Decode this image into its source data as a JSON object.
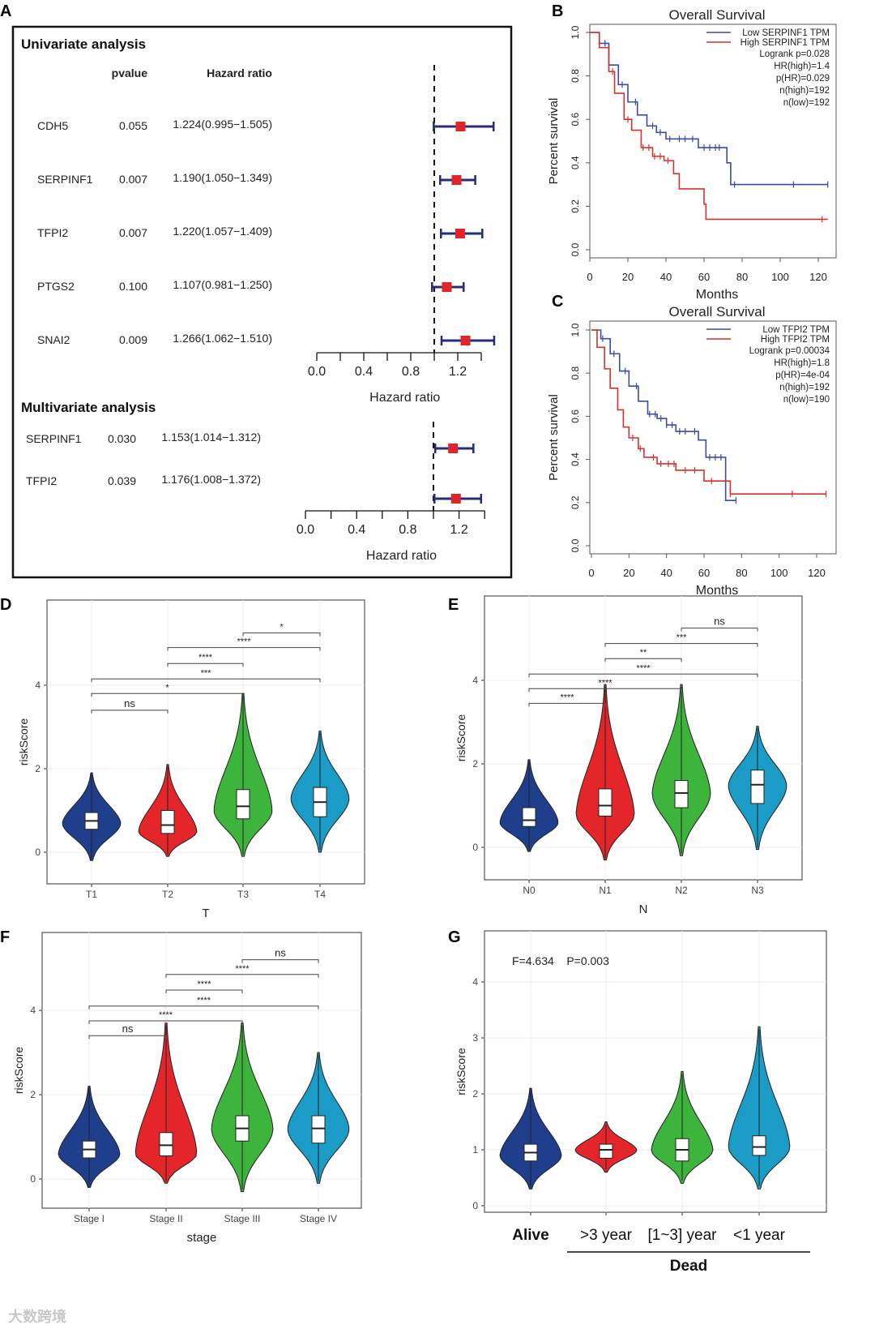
{
  "chart_data": [
    {
      "panel": "A",
      "type": "forest",
      "sections": [
        {
          "title": "Univariate analysis",
          "col_pvalue": "pvalue",
          "col_hr": "Hazard ratio",
          "xlabel": "Hazard ratio",
          "xticks": [
            "0.0",
            "0.4",
            "0.8",
            "1.2"
          ],
          "xlim": [
            0,
            1.4
          ],
          "reference": 1.0,
          "rows": [
            {
              "gene": "CDH5",
              "pvalue": "0.055",
              "hr_text": "1.224(0.995−1.505)",
              "hr": 1.224,
              "lo": 0.995,
              "hi": 1.505
            },
            {
              "gene": "SERPINF1",
              "pvalue": "0.007",
              "hr_text": "1.190(1.050−1.349)",
              "hr": 1.19,
              "lo": 1.05,
              "hi": 1.349
            },
            {
              "gene": "TFPI2",
              "pvalue": "0.007",
              "hr_text": "1.220(1.057−1.409)",
              "hr": 1.22,
              "lo": 1.057,
              "hi": 1.409
            },
            {
              "gene": "PTGS2",
              "pvalue": "0.100",
              "hr_text": "1.107(0.981−1.250)",
              "hr": 1.107,
              "lo": 0.981,
              "hi": 1.25
            },
            {
              "gene": "SNAI2",
              "pvalue": "0.009",
              "hr_text": "1.266(1.062−1.510)",
              "hr": 1.266,
              "lo": 1.062,
              "hi": 1.51
            }
          ]
        },
        {
          "title": "Multivariate analysis",
          "xlabel": "Hazard ratio",
          "xticks": [
            "0.0",
            "0.4",
            "0.8",
            "1.2"
          ],
          "xlim": [
            0,
            1.4
          ],
          "reference": 1.0,
          "rows": [
            {
              "gene": "SERPINF1",
              "pvalue": "0.030",
              "hr_text": "1.153(1.014−1.312)",
              "hr": 1.153,
              "lo": 1.014,
              "hi": 1.312
            },
            {
              "gene": "TFPI2",
              "pvalue": "0.039",
              "hr_text": "1.176(1.008−1.372)",
              "hr": 1.176,
              "lo": 1.008,
              "hi": 1.372
            }
          ]
        }
      ]
    },
    {
      "panel": "B",
      "type": "line",
      "title": "Overall Survival",
      "xlabel": "Months",
      "ylabel": "Percent survival",
      "xticks": [
        0,
        20,
        40,
        60,
        80,
        100,
        120
      ],
      "yticks": [
        "0.0",
        "0.2",
        "0.4",
        "0.6",
        "0.8",
        "1.0"
      ],
      "xlim": [
        0,
        125
      ],
      "ylim": [
        0,
        1
      ],
      "legend": [
        "Low SERPINF1 TPM",
        "High SERPINF1 TPM"
      ],
      "stats": [
        "Logrank p=0.028",
        "HR(high)=1.4",
        "p(HR)=0.029",
        "n(high)=192",
        "n(low)=192"
      ],
      "series": [
        {
          "name": "Low SERPINF1 TPM",
          "color": "#3b4ba8",
          "steps": [
            [
              0,
              1
            ],
            [
              5,
              0.95
            ],
            [
              10,
              0.85
            ],
            [
              15,
              0.76
            ],
            [
              20,
              0.68
            ],
            [
              25,
              0.62
            ],
            [
              30,
              0.57
            ],
            [
              35,
              0.54
            ],
            [
              40,
              0.51
            ],
            [
              57,
              0.47
            ],
            [
              72,
              0.4
            ],
            [
              74,
              0.3
            ],
            [
              125,
              0.3
            ]
          ],
          "censors": [
            8,
            17,
            24,
            33,
            37,
            42,
            47,
            50,
            54,
            60,
            63,
            66,
            68,
            76,
            107,
            125
          ]
        },
        {
          "name": "High SERPINF1 TPM",
          "color": "#d9302a",
          "steps": [
            [
              0,
              1
            ],
            [
              5,
              0.93
            ],
            [
              10,
              0.82
            ],
            [
              13,
              0.72
            ],
            [
              18,
              0.6
            ],
            [
              22,
              0.55
            ],
            [
              27,
              0.47
            ],
            [
              33,
              0.43
            ],
            [
              39,
              0.41
            ],
            [
              44,
              0.35
            ],
            [
              47,
              0.28
            ],
            [
              60,
              0.21
            ],
            [
              61,
              0.14
            ],
            [
              125,
              0.14
            ]
          ],
          "censors": [
            12,
            20,
            28,
            31,
            34,
            37,
            41,
            122
          ]
        }
      ]
    },
    {
      "panel": "C",
      "type": "line",
      "title": "Overall Survival",
      "xlabel": "Months",
      "ylabel": "Percent survival",
      "xticks": [
        0,
        20,
        40,
        60,
        80,
        100,
        120
      ],
      "yticks": [
        "0.0",
        "0.2",
        "0.4",
        "0.6",
        "0.8",
        "1.0"
      ],
      "xlim": [
        0,
        125
      ],
      "ylim": [
        0,
        1
      ],
      "legend": [
        "Low TFPI2 TPM",
        "High TFPI2 TPM"
      ],
      "stats": [
        "Logrank p=0.00034",
        "HR(high)=1.8",
        "p(HR)=4e-04",
        "n(high)=192",
        "n(low)=190"
      ],
      "series": [
        {
          "name": "Low TFPI2 TPM",
          "color": "#3b4ba8",
          "steps": [
            [
              0,
              1
            ],
            [
              5,
              0.96
            ],
            [
              10,
              0.89
            ],
            [
              15,
              0.81
            ],
            [
              20,
              0.74
            ],
            [
              25,
              0.67
            ],
            [
              30,
              0.61
            ],
            [
              35,
              0.59
            ],
            [
              40,
              0.56
            ],
            [
              45,
              0.53
            ],
            [
              57,
              0.49
            ],
            [
              61,
              0.41
            ],
            [
              71,
              0.41
            ],
            [
              71.5,
              0.21
            ],
            [
              77,
              0.21
            ]
          ],
          "censors": [
            6,
            12,
            18,
            24,
            31,
            34,
            37,
            40,
            43,
            47,
            50,
            55,
            63,
            66,
            69,
            77
          ]
        },
        {
          "name": "High TFPI2 TPM",
          "color": "#d9302a",
          "steps": [
            [
              0,
              1
            ],
            [
              3,
              0.92
            ],
            [
              7,
              0.82
            ],
            [
              10,
              0.73
            ],
            [
              14,
              0.63
            ],
            [
              17,
              0.55
            ],
            [
              20,
              0.5
            ],
            [
              25,
              0.45
            ],
            [
              28,
              0.41
            ],
            [
              35,
              0.38
            ],
            [
              45,
              0.35
            ],
            [
              60,
              0.3
            ],
            [
              74,
              0.24
            ],
            [
              125,
              0.24
            ]
          ],
          "censors": [
            22,
            26,
            33,
            37,
            41,
            44,
            50,
            55,
            64,
            74,
            107,
            125
          ]
        }
      ]
    },
    {
      "panel": "D",
      "type": "violin",
      "xlabel": "T",
      "ylabel": "riskScore",
      "categories": [
        "T1",
        "T2",
        "T3",
        "T4"
      ],
      "yticks": [
        0,
        2,
        4
      ],
      "ylim": [
        -0.5,
        5.8
      ],
      "groups": [
        {
          "median": 0.75,
          "q1": 0.55,
          "q3": 0.95,
          "min": -0.2,
          "max": 1.9,
          "peak": 0.7
        },
        {
          "median": 0.65,
          "q1": 0.45,
          "q3": 1.0,
          "min": -0.1,
          "max": 2.1,
          "peak": 0.5
        },
        {
          "median": 1.1,
          "q1": 0.8,
          "q3": 1.5,
          "min": -0.1,
          "max": 3.8,
          "peak": 1.0
        },
        {
          "median": 1.2,
          "q1": 0.85,
          "q3": 1.55,
          "min": 0.0,
          "max": 2.9,
          "peak": 1.3
        }
      ],
      "comparisons": [
        {
          "a": 2,
          "b": 3,
          "label": "*",
          "y": 5.25
        },
        {
          "a": 1,
          "b": 3,
          "label": "****",
          "y": 4.9
        },
        {
          "a": 1,
          "b": 2,
          "label": "****",
          "y": 4.52
        },
        {
          "a": 0,
          "b": 3,
          "label": "***",
          "y": 4.15
        },
        {
          "a": 0,
          "b": 2,
          "label": "*",
          "y": 3.8
        },
        {
          "a": 0,
          "b": 1,
          "label": "ns",
          "y": 3.4
        }
      ]
    },
    {
      "panel": "E",
      "type": "violin",
      "xlabel": "N",
      "ylabel": "riskScore",
      "categories": [
        "N0",
        "N1",
        "N2",
        "N3"
      ],
      "yticks": [
        0,
        2,
        4
      ],
      "ylim": [
        -0.5,
        5.8
      ],
      "groups": [
        {
          "median": 0.65,
          "q1": 0.5,
          "q3": 0.95,
          "min": -0.1,
          "max": 2.1,
          "peak": 0.6
        },
        {
          "median": 1.0,
          "q1": 0.75,
          "q3": 1.4,
          "min": -0.3,
          "max": 3.9,
          "peak": 0.8
        },
        {
          "median": 1.3,
          "q1": 0.95,
          "q3": 1.6,
          "min": -0.2,
          "max": 3.9,
          "peak": 1.3
        },
        {
          "median": 1.5,
          "q1": 1.05,
          "q3": 1.85,
          "min": -0.05,
          "max": 2.9,
          "peak": 1.5
        }
      ],
      "comparisons": [
        {
          "a": 2,
          "b": 3,
          "label": "ns",
          "y": 5.25
        },
        {
          "a": 1,
          "b": 3,
          "label": "***",
          "y": 4.88
        },
        {
          "a": 1,
          "b": 2,
          "label": "**",
          "y": 4.52
        },
        {
          "a": 0,
          "b": 3,
          "label": "****",
          "y": 4.15
        },
        {
          "a": 0,
          "b": 2,
          "label": "****",
          "y": 3.8
        },
        {
          "a": 0,
          "b": 1,
          "label": "****",
          "y": 3.45
        }
      ]
    },
    {
      "panel": "F",
      "type": "violin",
      "xlabel": "stage",
      "ylabel": "riskScore",
      "categories": [
        "Stage I",
        "Stage II",
        "Stage III",
        "Stage IV"
      ],
      "yticks": [
        0,
        2,
        4
      ],
      "ylim": [
        -0.5,
        5.8
      ],
      "groups": [
        {
          "median": 0.7,
          "q1": 0.5,
          "q3": 0.9,
          "min": -0.2,
          "max": 2.2,
          "peak": 0.6
        },
        {
          "median": 0.8,
          "q1": 0.55,
          "q3": 1.1,
          "min": -0.1,
          "max": 3.7,
          "peak": 0.6
        },
        {
          "median": 1.2,
          "q1": 0.9,
          "q3": 1.5,
          "min": -0.3,
          "max": 3.7,
          "peak": 1.2
        },
        {
          "median": 1.2,
          "q1": 0.85,
          "q3": 1.5,
          "min": -0.1,
          "max": 3.0,
          "peak": 1.2
        }
      ],
      "comparisons": [
        {
          "a": 2,
          "b": 3,
          "label": "ns",
          "y": 5.2
        },
        {
          "a": 1,
          "b": 3,
          "label": "****",
          "y": 4.85
        },
        {
          "a": 1,
          "b": 2,
          "label": "****",
          "y": 4.48
        },
        {
          "a": 0,
          "b": 3,
          "label": "****",
          "y": 4.1
        },
        {
          "a": 0,
          "b": 2,
          "label": "****",
          "y": 3.75
        },
        {
          "a": 0,
          "b": 1,
          "label": "ns",
          "y": 3.4
        }
      ]
    },
    {
      "panel": "G",
      "type": "violin",
      "xlabel": "Dead",
      "ylabel": "riskScore",
      "categories": [
        "Alive",
        ">3 year",
        "[1~3] year",
        "<1 year"
      ],
      "yticks": [
        0,
        1,
        2,
        3,
        4
      ],
      "ylim": [
        0,
        4.7
      ],
      "annotation": "F=4.634    P=0.003",
      "groups": [
        {
          "median": 0.95,
          "q1": 0.8,
          "q3": 1.1,
          "min": 0.3,
          "max": 2.1,
          "peak": 0.9
        },
        {
          "median": 1.0,
          "q1": 0.85,
          "q3": 1.1,
          "min": 0.6,
          "max": 1.5,
          "peak": 1.0
        },
        {
          "median": 1.0,
          "q1": 0.8,
          "q3": 1.2,
          "min": 0.4,
          "max": 2.4,
          "peak": 1.0
        },
        {
          "median": 1.05,
          "q1": 0.9,
          "q3": 1.25,
          "min": 0.3,
          "max": 3.2,
          "peak": 1.05
        }
      ],
      "comparisons": []
    }
  ],
  "violin_colors": [
    "#1f3f8c",
    "#e4262a",
    "#3db43c",
    "#1b9cc6"
  ],
  "forest_colors": {
    "box": "#e0242a",
    "ci": "#262b7a"
  },
  "watermark": "大数跨境"
}
